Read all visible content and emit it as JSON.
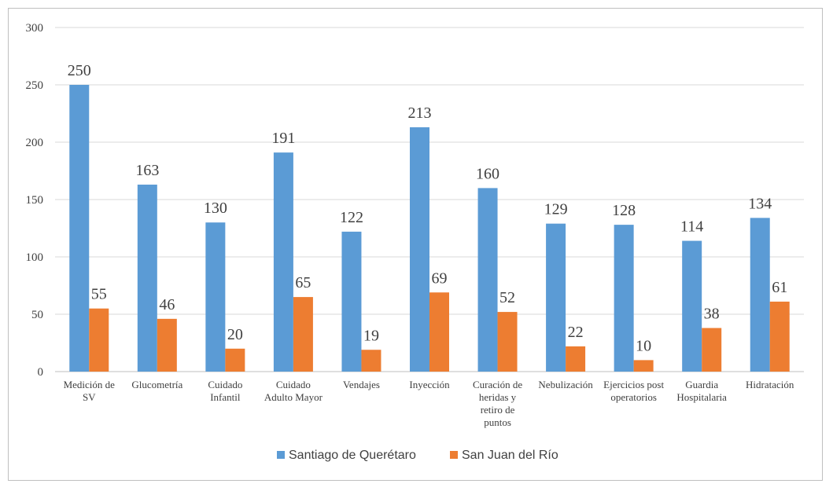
{
  "chart_data": {
    "type": "bar",
    "title": "",
    "xlabel": "",
    "ylabel": "",
    "ylim": [
      0,
      300
    ],
    "yticks": [
      0,
      50,
      100,
      150,
      200,
      250,
      300
    ],
    "grid": true,
    "legend_position": "bottom",
    "categories": [
      [
        "Medición de",
        "SV"
      ],
      [
        "Glucometría"
      ],
      [
        "Cuidado",
        "Infantil"
      ],
      [
        "Cuidado",
        "Adulto Mayor"
      ],
      [
        "Vendajes"
      ],
      [
        "Inyección"
      ],
      [
        "Curación de",
        "heridas y",
        "retiro de",
        "puntos"
      ],
      [
        "Nebulización"
      ],
      [
        "Ejercicios post",
        "operatorios"
      ],
      [
        "Guardia",
        "Hospitalaria"
      ],
      [
        "Hidratación"
      ]
    ],
    "series": [
      {
        "name": "Santiago de Querétaro",
        "color": "#5b9bd5",
        "values": [
          250,
          163,
          130,
          191,
          122,
          213,
          160,
          129,
          128,
          114,
          134
        ]
      },
      {
        "name": "San Juan del Río",
        "color": "#ed7d31",
        "values": [
          55,
          46,
          20,
          65,
          19,
          69,
          52,
          22,
          10,
          38,
          61
        ]
      }
    ]
  }
}
